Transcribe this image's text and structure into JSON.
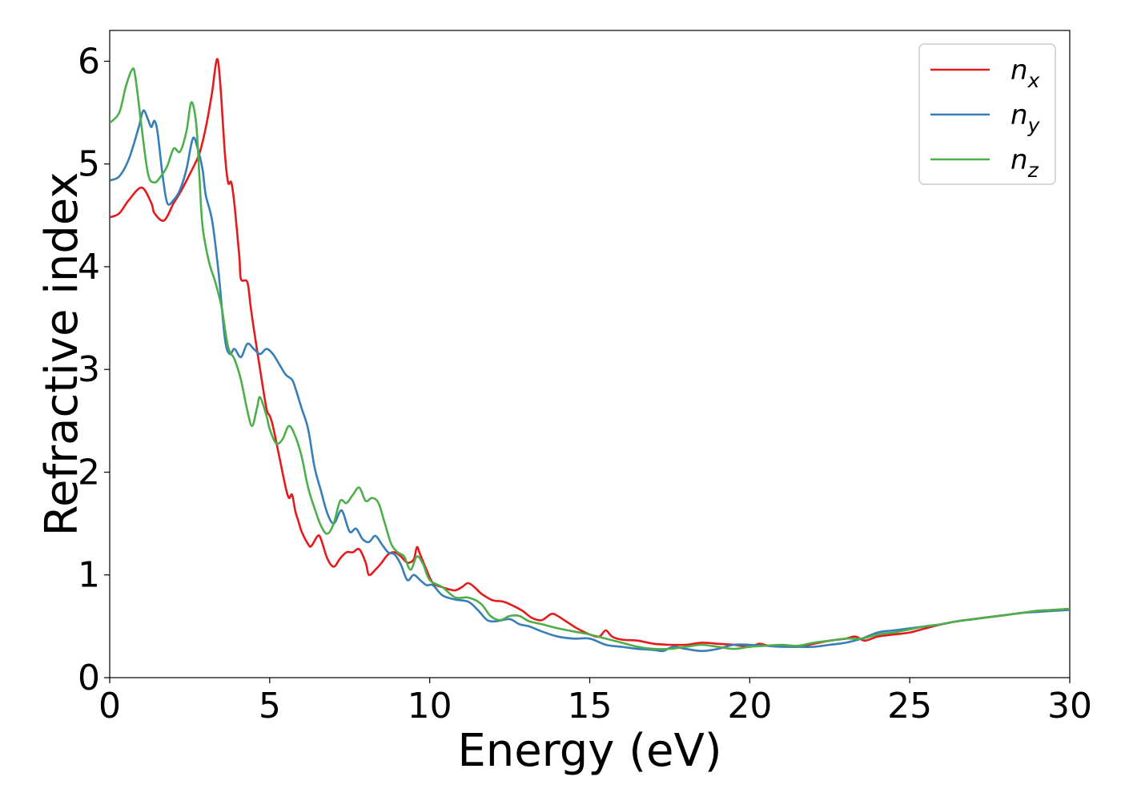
{
  "chart_data": {
    "type": "line",
    "title": "",
    "xlabel": "Energy (eV)",
    "ylabel": "Refractive index",
    "xlim": [
      0,
      30
    ],
    "ylim": [
      0,
      6.3
    ],
    "xticks": [
      0,
      5,
      10,
      15,
      20,
      25,
      30
    ],
    "yticks": [
      0,
      1,
      2,
      3,
      4,
      5,
      6
    ],
    "grid": false,
    "legend_position": "top-right",
    "series": [
      {
        "name": "n",
        "subscript": "x",
        "color": "#e41a1c",
        "points": [
          [
            0,
            4.48
          ],
          [
            0.3,
            4.52
          ],
          [
            0.6,
            4.65
          ],
          [
            1.0,
            4.77
          ],
          [
            1.3,
            4.62
          ],
          [
            1.4,
            4.52
          ],
          [
            1.7,
            4.45
          ],
          [
            2.0,
            4.62
          ],
          [
            2.2,
            4.72
          ],
          [
            2.5,
            4.9
          ],
          [
            2.8,
            5.1
          ],
          [
            3.0,
            5.35
          ],
          [
            3.2,
            5.7
          ],
          [
            3.35,
            6.02
          ],
          [
            3.45,
            5.8
          ],
          [
            3.6,
            5.1
          ],
          [
            3.7,
            4.82
          ],
          [
            3.8,
            4.82
          ],
          [
            3.9,
            4.6
          ],
          [
            4.05,
            4.1
          ],
          [
            4.1,
            3.88
          ],
          [
            4.3,
            3.85
          ],
          [
            4.4,
            3.62
          ],
          [
            4.5,
            3.4
          ],
          [
            4.7,
            3.0
          ],
          [
            4.9,
            2.62
          ],
          [
            5.0,
            2.55
          ],
          [
            5.1,
            2.45
          ],
          [
            5.3,
            2.15
          ],
          [
            5.5,
            1.85
          ],
          [
            5.6,
            1.75
          ],
          [
            5.7,
            1.78
          ],
          [
            5.8,
            1.62
          ],
          [
            5.9,
            1.52
          ],
          [
            6.0,
            1.42
          ],
          [
            6.2,
            1.3
          ],
          [
            6.3,
            1.28
          ],
          [
            6.5,
            1.38
          ],
          [
            6.6,
            1.35
          ],
          [
            6.8,
            1.16
          ],
          [
            7.0,
            1.08
          ],
          [
            7.2,
            1.16
          ],
          [
            7.4,
            1.22
          ],
          [
            7.6,
            1.22
          ],
          [
            7.8,
            1.25
          ],
          [
            8.0,
            1.12
          ],
          [
            8.1,
            1.0
          ],
          [
            8.3,
            1.05
          ],
          [
            8.5,
            1.12
          ],
          [
            8.7,
            1.2
          ],
          [
            8.9,
            1.22
          ],
          [
            9.1,
            1.18
          ],
          [
            9.3,
            1.12
          ],
          [
            9.5,
            1.15
          ],
          [
            9.6,
            1.27
          ],
          [
            9.7,
            1.2
          ],
          [
            9.9,
            1.05
          ],
          [
            10.1,
            0.92
          ],
          [
            10.4,
            0.88
          ],
          [
            10.6,
            0.86
          ],
          [
            10.8,
            0.85
          ],
          [
            11.0,
            0.88
          ],
          [
            11.2,
            0.92
          ],
          [
            11.4,
            0.88
          ],
          [
            11.6,
            0.82
          ],
          [
            11.8,
            0.78
          ],
          [
            12.0,
            0.75
          ],
          [
            12.3,
            0.74
          ],
          [
            12.6,
            0.7
          ],
          [
            12.9,
            0.65
          ],
          [
            13.2,
            0.58
          ],
          [
            13.5,
            0.56
          ],
          [
            13.8,
            0.62
          ],
          [
            14.0,
            0.6
          ],
          [
            14.3,
            0.54
          ],
          [
            14.6,
            0.48
          ],
          [
            15.0,
            0.42
          ],
          [
            15.3,
            0.4
          ],
          [
            15.5,
            0.46
          ],
          [
            15.7,
            0.4
          ],
          [
            16.0,
            0.37
          ],
          [
            16.5,
            0.36
          ],
          [
            17.0,
            0.33
          ],
          [
            17.5,
            0.32
          ],
          [
            18.0,
            0.32
          ],
          [
            18.5,
            0.34
          ],
          [
            19.0,
            0.33
          ],
          [
            19.5,
            0.32
          ],
          [
            20.0,
            0.3
          ],
          [
            20.3,
            0.33
          ],
          [
            20.6,
            0.31
          ],
          [
            21.0,
            0.31
          ],
          [
            21.5,
            0.3
          ],
          [
            22.0,
            0.33
          ],
          [
            22.5,
            0.36
          ],
          [
            23.0,
            0.38
          ],
          [
            23.3,
            0.4
          ],
          [
            23.6,
            0.36
          ],
          [
            24.0,
            0.4
          ],
          [
            24.5,
            0.42
          ],
          [
            25.0,
            0.44
          ],
          [
            25.5,
            0.48
          ],
          [
            26.0,
            0.52
          ],
          [
            26.5,
            0.55
          ],
          [
            27.0,
            0.57
          ],
          [
            27.5,
            0.59
          ],
          [
            28.0,
            0.61
          ],
          [
            28.5,
            0.63
          ],
          [
            29.0,
            0.65
          ],
          [
            29.5,
            0.66
          ],
          [
            30.0,
            0.67
          ]
        ]
      },
      {
        "name": "n",
        "subscript": "y",
        "color": "#377eb8",
        "points": [
          [
            0,
            4.84
          ],
          [
            0.3,
            4.88
          ],
          [
            0.6,
            5.05
          ],
          [
            0.9,
            5.35
          ],
          [
            1.05,
            5.52
          ],
          [
            1.2,
            5.43
          ],
          [
            1.3,
            5.36
          ],
          [
            1.4,
            5.42
          ],
          [
            1.5,
            5.3
          ],
          [
            1.65,
            4.9
          ],
          [
            1.8,
            4.62
          ],
          [
            2.0,
            4.65
          ],
          [
            2.2,
            4.75
          ],
          [
            2.4,
            4.95
          ],
          [
            2.6,
            5.25
          ],
          [
            2.75,
            5.15
          ],
          [
            2.9,
            4.95
          ],
          [
            3.0,
            4.7
          ],
          [
            3.2,
            4.45
          ],
          [
            3.4,
            3.95
          ],
          [
            3.6,
            3.3
          ],
          [
            3.75,
            3.15
          ],
          [
            3.9,
            3.2
          ],
          [
            4.1,
            3.12
          ],
          [
            4.3,
            3.25
          ],
          [
            4.5,
            3.2
          ],
          [
            4.7,
            3.15
          ],
          [
            4.9,
            3.2
          ],
          [
            5.1,
            3.15
          ],
          [
            5.3,
            3.05
          ],
          [
            5.5,
            2.95
          ],
          [
            5.7,
            2.9
          ],
          [
            5.8,
            2.82
          ],
          [
            6.0,
            2.62
          ],
          [
            6.2,
            2.42
          ],
          [
            6.4,
            2.05
          ],
          [
            6.6,
            1.82
          ],
          [
            6.8,
            1.6
          ],
          [
            7.0,
            1.5
          ],
          [
            7.2,
            1.62
          ],
          [
            7.3,
            1.6
          ],
          [
            7.5,
            1.42
          ],
          [
            7.7,
            1.45
          ],
          [
            7.9,
            1.35
          ],
          [
            8.1,
            1.32
          ],
          [
            8.3,
            1.38
          ],
          [
            8.5,
            1.3
          ],
          [
            8.7,
            1.22
          ],
          [
            8.9,
            1.2
          ],
          [
            9.1,
            1.1
          ],
          [
            9.3,
            0.95
          ],
          [
            9.5,
            1.0
          ],
          [
            9.7,
            0.95
          ],
          [
            9.9,
            0.9
          ],
          [
            10.1,
            0.9
          ],
          [
            10.4,
            0.8
          ],
          [
            10.8,
            0.76
          ],
          [
            11.2,
            0.74
          ],
          [
            11.5,
            0.66
          ],
          [
            11.8,
            0.56
          ],
          [
            12.1,
            0.55
          ],
          [
            12.5,
            0.57
          ],
          [
            12.8,
            0.52
          ],
          [
            13.1,
            0.5
          ],
          [
            13.5,
            0.45
          ],
          [
            14.0,
            0.4
          ],
          [
            14.5,
            0.38
          ],
          [
            15.0,
            0.38
          ],
          [
            15.5,
            0.32
          ],
          [
            16.0,
            0.3
          ],
          [
            16.5,
            0.28
          ],
          [
            17.0,
            0.27
          ],
          [
            17.3,
            0.26
          ],
          [
            17.6,
            0.3
          ],
          [
            18.0,
            0.28
          ],
          [
            18.5,
            0.26
          ],
          [
            19.0,
            0.28
          ],
          [
            19.5,
            0.32
          ],
          [
            20.0,
            0.32
          ],
          [
            20.5,
            0.31
          ],
          [
            21.0,
            0.3
          ],
          [
            21.5,
            0.3
          ],
          [
            22.0,
            0.3
          ],
          [
            22.5,
            0.32
          ],
          [
            23.0,
            0.34
          ],
          [
            23.5,
            0.38
          ],
          [
            24.0,
            0.44
          ],
          [
            24.5,
            0.46
          ],
          [
            25.0,
            0.48
          ],
          [
            25.5,
            0.5
          ],
          [
            26.0,
            0.52
          ],
          [
            26.5,
            0.55
          ],
          [
            27.0,
            0.57
          ],
          [
            27.5,
            0.59
          ],
          [
            28.0,
            0.61
          ],
          [
            28.5,
            0.63
          ],
          [
            29.0,
            0.64
          ],
          [
            29.5,
            0.65
          ],
          [
            30.0,
            0.66
          ]
        ]
      },
      {
        "name": "n",
        "subscript": "z",
        "color": "#4daf4a",
        "points": [
          [
            0,
            5.4
          ],
          [
            0.3,
            5.5
          ],
          [
            0.5,
            5.75
          ],
          [
            0.7,
            5.92
          ],
          [
            0.8,
            5.85
          ],
          [
            1.0,
            5.35
          ],
          [
            1.2,
            4.9
          ],
          [
            1.4,
            4.82
          ],
          [
            1.6,
            4.88
          ],
          [
            1.8,
            4.98
          ],
          [
            2.0,
            5.15
          ],
          [
            2.2,
            5.12
          ],
          [
            2.4,
            5.32
          ],
          [
            2.55,
            5.6
          ],
          [
            2.7,
            5.4
          ],
          [
            2.8,
            4.9
          ],
          [
            2.9,
            4.4
          ],
          [
            3.1,
            4.05
          ],
          [
            3.3,
            3.85
          ],
          [
            3.5,
            3.6
          ],
          [
            3.7,
            3.22
          ],
          [
            3.9,
            3.1
          ],
          [
            4.1,
            2.9
          ],
          [
            4.3,
            2.6
          ],
          [
            4.45,
            2.45
          ],
          [
            4.6,
            2.62
          ],
          [
            4.7,
            2.73
          ],
          [
            4.9,
            2.55
          ],
          [
            5.0,
            2.42
          ],
          [
            5.2,
            2.28
          ],
          [
            5.4,
            2.32
          ],
          [
            5.6,
            2.45
          ],
          [
            5.8,
            2.35
          ],
          [
            6.0,
            2.15
          ],
          [
            6.2,
            1.85
          ],
          [
            6.4,
            1.65
          ],
          [
            6.6,
            1.48
          ],
          [
            6.8,
            1.4
          ],
          [
            7.0,
            1.5
          ],
          [
            7.2,
            1.72
          ],
          [
            7.4,
            1.7
          ],
          [
            7.6,
            1.78
          ],
          [
            7.8,
            1.85
          ],
          [
            8.0,
            1.72
          ],
          [
            8.2,
            1.75
          ],
          [
            8.4,
            1.7
          ],
          [
            8.6,
            1.5
          ],
          [
            8.8,
            1.3
          ],
          [
            9.0,
            1.22
          ],
          [
            9.2,
            1.18
          ],
          [
            9.4,
            1.05
          ],
          [
            9.6,
            1.18
          ],
          [
            9.8,
            1.1
          ],
          [
            10.0,
            0.95
          ],
          [
            10.4,
            0.88
          ],
          [
            10.8,
            0.78
          ],
          [
            11.2,
            0.78
          ],
          [
            11.6,
            0.72
          ],
          [
            11.9,
            0.6
          ],
          [
            12.2,
            0.56
          ],
          [
            12.5,
            0.6
          ],
          [
            12.8,
            0.6
          ],
          [
            13.1,
            0.55
          ],
          [
            13.5,
            0.52
          ],
          [
            14.0,
            0.48
          ],
          [
            14.5,
            0.45
          ],
          [
            15.0,
            0.42
          ],
          [
            15.5,
            0.38
          ],
          [
            16.0,
            0.34
          ],
          [
            16.5,
            0.3
          ],
          [
            17.0,
            0.28
          ],
          [
            17.5,
            0.28
          ],
          [
            18.0,
            0.3
          ],
          [
            18.5,
            0.32
          ],
          [
            19.0,
            0.3
          ],
          [
            19.5,
            0.28
          ],
          [
            20.0,
            0.3
          ],
          [
            20.5,
            0.31
          ],
          [
            21.0,
            0.32
          ],
          [
            21.5,
            0.31
          ],
          [
            22.0,
            0.34
          ],
          [
            22.5,
            0.36
          ],
          [
            23.0,
            0.38
          ],
          [
            23.5,
            0.38
          ],
          [
            24.0,
            0.42
          ],
          [
            24.5,
            0.44
          ],
          [
            25.0,
            0.47
          ],
          [
            25.5,
            0.5
          ],
          [
            26.0,
            0.52
          ],
          [
            26.5,
            0.55
          ],
          [
            27.0,
            0.57
          ],
          [
            27.5,
            0.59
          ],
          [
            28.0,
            0.61
          ],
          [
            28.5,
            0.63
          ],
          [
            29.0,
            0.65
          ],
          [
            29.5,
            0.66
          ],
          [
            30.0,
            0.67
          ]
        ]
      }
    ]
  }
}
